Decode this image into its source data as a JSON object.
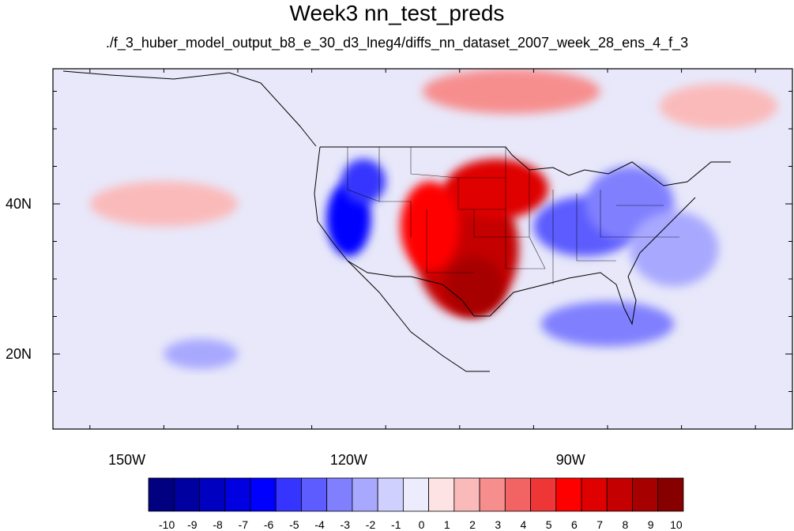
{
  "title": "Week3 nn_test_preds",
  "subtitle": "./f_3_huber_model_output_b8_e_30_d3_lneg4/diffs_nn_dataset_2007_week_28_ens_4_f_3",
  "map": {
    "lon_range": [
      -160,
      -60
    ],
    "lat_range": [
      10,
      58
    ],
    "x_ticks": [
      {
        "lon": -150,
        "label": "150W"
      },
      {
        "lon": -120,
        "label": "120W"
      },
      {
        "lon": -90,
        "label": "90W"
      }
    ],
    "y_ticks": [
      {
        "lat": 40,
        "label": "40N"
      },
      {
        "lat": 20,
        "label": "20N"
      }
    ],
    "background_color": "#e8e8fa"
  },
  "colorbar": {
    "labels": [
      "-10",
      "-9",
      "-8",
      "-7",
      "-6",
      "-5",
      "-4",
      "-3",
      "-2",
      "-1",
      "0",
      "1",
      "2",
      "3",
      "4",
      "5",
      "6",
      "7",
      "8",
      "9",
      "10"
    ],
    "colors": [
      "#000080",
      "#0000a0",
      "#0000c0",
      "#0000e0",
      "#0000ff",
      "#3535ff",
      "#5c5cff",
      "#8080ff",
      "#a8a8ff",
      "#d0d0ff",
      "#ececfc",
      "#fde3e3",
      "#fbbaba",
      "#f78e8e",
      "#f26363",
      "#ee3636",
      "#ff0000",
      "#df0000",
      "#c40000",
      "#a70000",
      "#870000"
    ]
  },
  "anomaly_regions": [
    {
      "value": 8,
      "lon": -104,
      "lat": 34,
      "rx": 7,
      "ry": 9
    },
    {
      "value": 9,
      "lon": -103,
      "lat": 29,
      "rx": 4,
      "ry": 4
    },
    {
      "value": 7,
      "lon": -100,
      "lat": 42,
      "rx": 7,
      "ry": 4
    },
    {
      "value": 6,
      "lon": -109,
      "lat": 37,
      "rx": 4,
      "ry": 6
    },
    {
      "value": -6,
      "lon": -120,
      "lat": 38,
      "rx": 3,
      "ry": 5
    },
    {
      "value": -5,
      "lon": -118,
      "lat": 43,
      "rx": 3,
      "ry": 3
    },
    {
      "value": -4,
      "lon": -88,
      "lat": 37,
      "rx": 7,
      "ry": 4
    },
    {
      "value": -3,
      "lon": -82,
      "lat": 40,
      "rx": 6,
      "ry": 5
    },
    {
      "value": -3,
      "lon": -85,
      "lat": 24,
      "rx": 9,
      "ry": 3
    },
    {
      "value": -2,
      "lon": -140,
      "lat": 20,
      "rx": 5,
      "ry": 2
    },
    {
      "value": -2,
      "lon": -76,
      "lat": 34,
      "rx": 6,
      "ry": 5
    },
    {
      "value": 3,
      "lon": -98,
      "lat": 55,
      "rx": 12,
      "ry": 3
    },
    {
      "value": 2,
      "lon": -145,
      "lat": 40,
      "rx": 10,
      "ry": 3
    },
    {
      "value": 2,
      "lon": -70,
      "lat": 53,
      "rx": 8,
      "ry": 3
    }
  ]
}
